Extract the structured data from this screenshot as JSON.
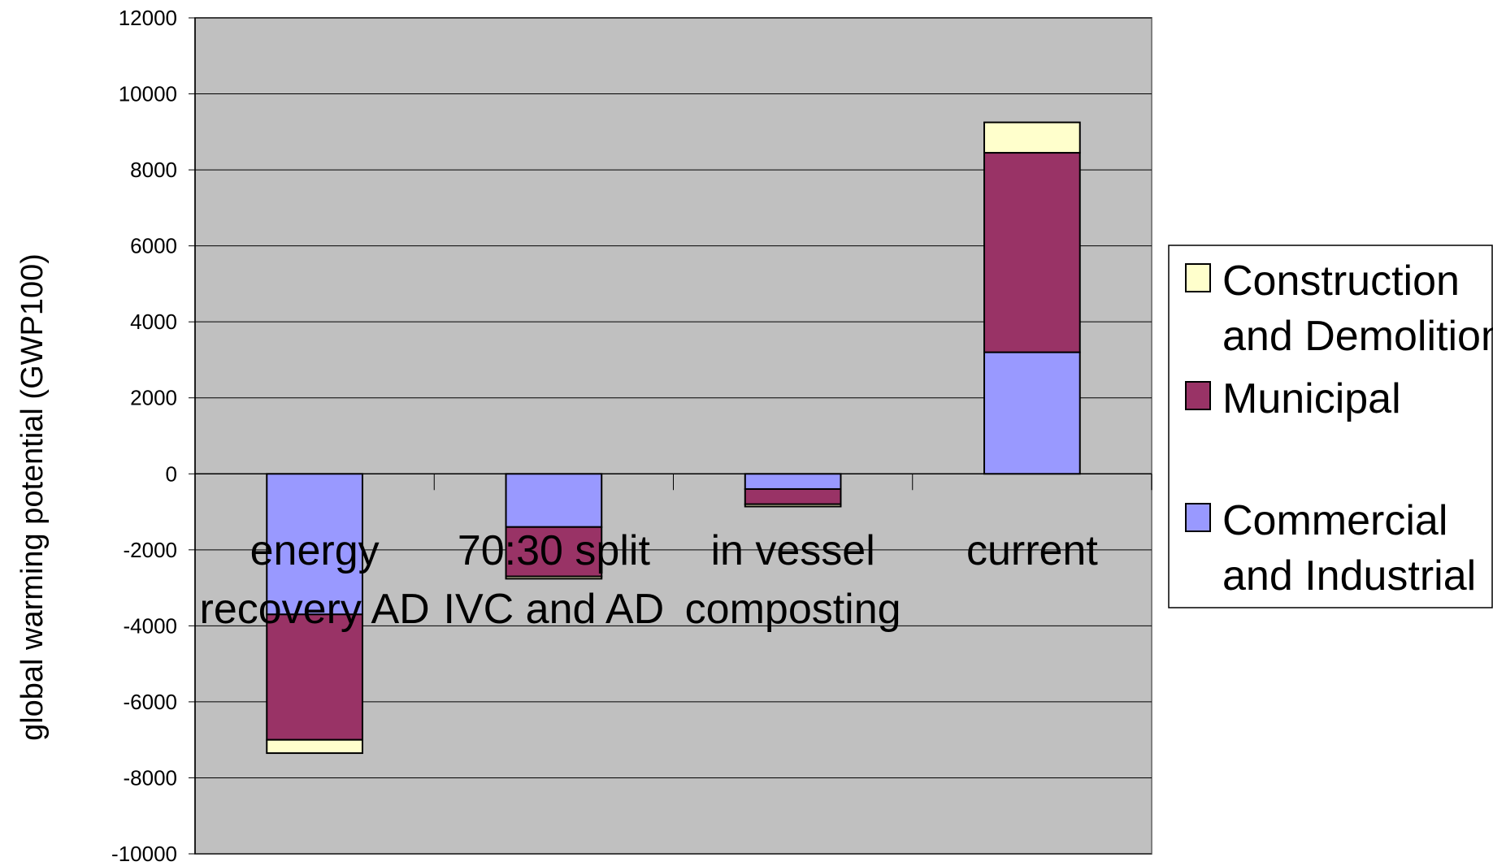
{
  "chart_data": {
    "type": "bar",
    "stacked": true,
    "title": "",
    "xlabel": "",
    "ylabel": "global warming potential (GWP100)",
    "ylim": [
      -10000,
      12000
    ],
    "yticks": [
      "12000",
      "10000",
      "8000",
      "6000",
      "4000",
      "2000",
      "0",
      "-2000",
      "-4000",
      "-6000",
      "-8000",
      "-10000"
    ],
    "grid": true,
    "legend_position": "right",
    "plot_background": "#C0C0C0",
    "categories": [
      [
        "energy",
        "recovery AD"
      ],
      [
        "70:30 split",
        "IVC and AD"
      ],
      [
        "in vessel",
        "composting"
      ],
      [
        "current"
      ]
    ],
    "series": [
      {
        "name": "Commercial and Industrial",
        "legend_lines": [
          "Commercial",
          "and Industrial"
        ],
        "color": "#9999FF",
        "values": [
          -3700,
          -1400,
          -400,
          3200
        ]
      },
      {
        "name": "Municipal",
        "legend_lines": [
          "Municipal"
        ],
        "color": "#993366",
        "values": [
          -3300,
          -1300,
          -400,
          5250
        ]
      },
      {
        "name": "Construction and Demolition",
        "legend_lines": [
          "Construction",
          "and Demolition"
        ],
        "color": "#FFFFCC",
        "values": [
          -350,
          -60,
          -60,
          800
        ]
      }
    ]
  }
}
